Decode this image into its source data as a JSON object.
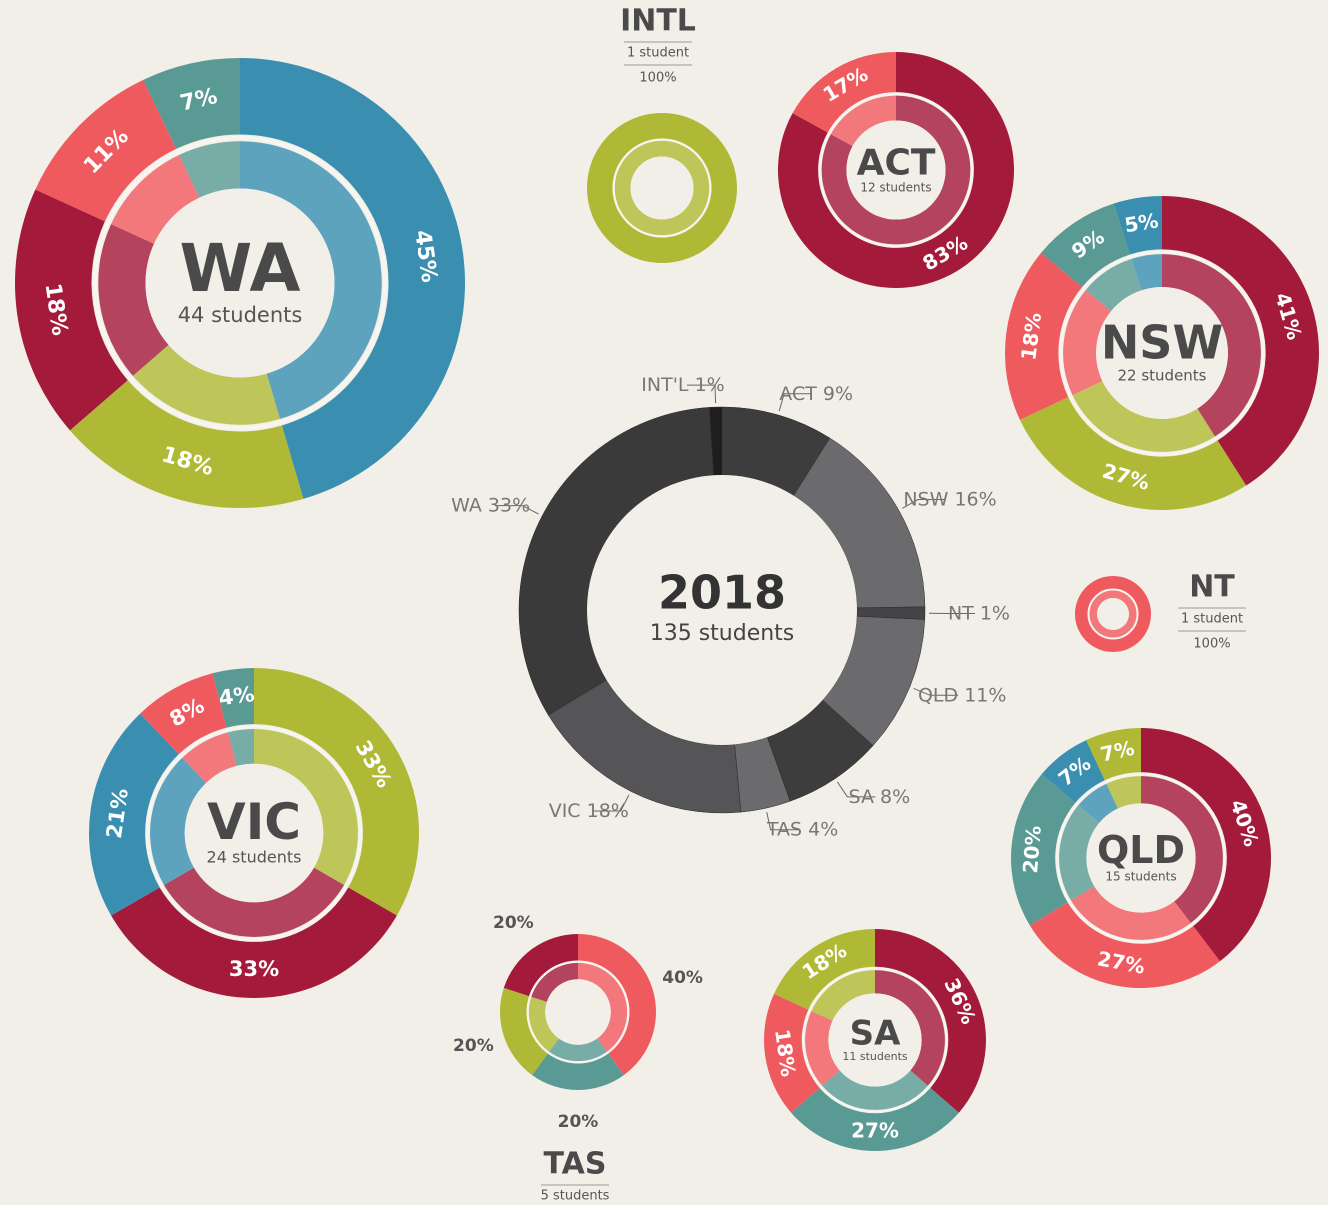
{
  "chart_data": [
    {
      "type": "donut",
      "title": "2018",
      "subtitle": "135 students",
      "categories": [
        "INT'L",
        "ACT",
        "NSW",
        "NT",
        "QLD",
        "SA",
        "TAS",
        "VIC",
        "WA"
      ],
      "values": [
        1,
        9,
        16,
        1,
        11,
        8,
        4,
        18,
        33
      ],
      "value_labels": [
        "1%",
        "9%",
        "16%",
        "1%",
        "11%",
        "8%",
        "4%",
        "18%",
        "33%"
      ],
      "colors": [
        "#1e1e1e",
        "#3d3d3d",
        "#6b6b6e",
        "#444446",
        "#6b6b6e",
        "#3d3d3d",
        "#6b6b6e",
        "#555558",
        "#3a3a3a"
      ]
    },
    {
      "type": "donut",
      "title": "WA",
      "subtitle": "44 students",
      "values": [
        45,
        18,
        18,
        11,
        7
      ],
      "value_labels": [
        "45%",
        "18%",
        "18%",
        "11%",
        "7%"
      ],
      "colors": [
        "#3a8fb0",
        "#b0b935",
        "#a31a3a",
        "#ef5a5e",
        "#5a9a94"
      ]
    },
    {
      "type": "donut",
      "title": "INTL",
      "subtitle": "1 student",
      "values": [
        100
      ],
      "value_labels": [
        "100%"
      ],
      "colors": [
        "#b0b935"
      ]
    },
    {
      "type": "donut",
      "title": "ACT",
      "subtitle": "12 students",
      "values": [
        83,
        17
      ],
      "value_labels": [
        "83%",
        "17%"
      ],
      "colors": [
        "#a31a3a",
        "#ef5a5e"
      ]
    },
    {
      "type": "donut",
      "title": "NSW",
      "subtitle": "22 students",
      "values": [
        41,
        27,
        18,
        9,
        5
      ],
      "value_labels": [
        "41%",
        "27%",
        "18%",
        "9%",
        "5%"
      ],
      "colors": [
        "#a31a3a",
        "#b0b935",
        "#ef5a5e",
        "#5a9a94",
        "#3a8fb0"
      ]
    },
    {
      "type": "donut",
      "title": "NT",
      "subtitle": "1 student",
      "values": [
        100
      ],
      "value_labels": [
        "100%"
      ],
      "colors": [
        "#ef5a5e"
      ]
    },
    {
      "type": "donut",
      "title": "VIC",
      "subtitle": "24 students",
      "values": [
        33,
        33,
        21,
        8,
        4
      ],
      "value_labels": [
        "33%",
        "33%",
        "21%",
        "8%",
        "4%"
      ],
      "colors": [
        "#b0b935",
        "#a31a3a",
        "#3a8fb0",
        "#ef5a5e",
        "#5a9a94"
      ]
    },
    {
      "type": "donut",
      "title": "QLD",
      "subtitle": "15 students",
      "values": [
        40,
        27,
        20,
        7,
        7
      ],
      "value_labels": [
        "40%",
        "27%",
        "20%",
        "7%",
        "7%"
      ],
      "colors": [
        "#a31a3a",
        "#ef5a5e",
        "#5a9a94",
        "#3a8fb0",
        "#b0b935"
      ]
    },
    {
      "type": "donut",
      "title": "SA",
      "subtitle": "11 students",
      "values": [
        36,
        27,
        18,
        18
      ],
      "value_labels": [
        "36%",
        "27%",
        "18%",
        "18%"
      ],
      "colors": [
        "#a31a3a",
        "#5a9a94",
        "#ef5a5e",
        "#b0b935"
      ]
    },
    {
      "type": "donut",
      "title": "TAS",
      "subtitle": "5 students",
      "values": [
        40,
        20,
        20,
        20
      ],
      "value_labels": [
        "40%",
        "20%",
        "20%",
        "20%"
      ],
      "colors": [
        "#ef5a5e",
        "#5a9a94",
        "#b0b935",
        "#a31a3a"
      ]
    }
  ]
}
